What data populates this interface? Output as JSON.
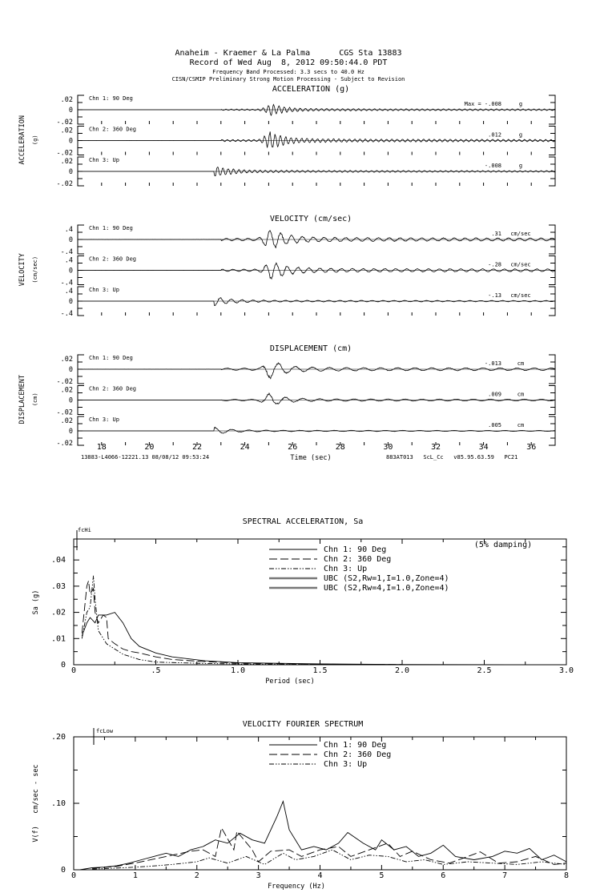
{
  "header": {
    "station": "Anaheim - Kraemer & La Palma      CGS Sta 13883",
    "record": "Record of Wed Aug  8, 2012 09:50:44.0 PDT",
    "band": "Frequency Band Processed: 3.3 secs to 40.0 Hz",
    "notice": "CISN/CSMIP Preliminary Strong Motion Processing - Subject to Revision"
  },
  "time_series": {
    "x_label": "Time (sec)",
    "x_ticks": [
      18,
      20,
      22,
      24,
      26,
      28,
      30,
      32,
      34,
      36
    ],
    "xlim": [
      17,
      37
    ],
    "footer_left": "13883-L4066-12221.13 08/08/12 09:53:24",
    "footer_right": "883AT013   ScL_Cc   v85.95.63.59   PC21",
    "groups": [
      {
        "title": "ACCELERATION (g)",
        "ylabel": "ACCELERATION",
        "yunit": "(g)",
        "ylim": 0.02,
        "tick_labels": [
          ".02",
          "0",
          "-.02"
        ],
        "channels": [
          {
            "label": "Chn 1: 90 Deg",
            "max_prefix": "Max =",
            "max": "-.008",
            "unit": "g",
            "onset": 23.0,
            "peak_time": 25.1,
            "peak": -0.008
          },
          {
            "label": "Chn 2: 360 Deg",
            "max": ".012",
            "unit": "g",
            "onset": 23.0,
            "peak_time": 25.05,
            "peak": 0.012
          },
          {
            "label": "Chn 3: Up",
            "max": "-.008",
            "unit": "g",
            "onset": 22.7,
            "peak_time": 22.75,
            "peak": -0.008
          }
        ]
      },
      {
        "title": "VELOCITY (cm/sec)",
        "ylabel": "VELOCITY",
        "yunit": "(cm/sec)",
        "ylim": 0.4,
        "tick_labels": [
          ".4",
          "0",
          "-.4"
        ],
        "channels": [
          {
            "label": "Chn 1: 90 Deg",
            "max": ".31",
            "unit": "cm/sec",
            "onset": 23.0,
            "peak_time": 25.05,
            "peak": 0.31
          },
          {
            "label": "Chn 2: 360 Deg",
            "max": "-.28",
            "unit": "cm/sec",
            "onset": 23.0,
            "peak_time": 25.1,
            "peak": -0.28
          },
          {
            "label": "Chn 3: Up",
            "max": "-.13",
            "unit": "cm/sec",
            "onset": 22.7,
            "peak_time": 22.75,
            "peak": -0.13
          }
        ]
      },
      {
        "title": "DISPLACEMENT (cm)",
        "ylabel": "DISPLACEMENT",
        "yunit": "(cm)",
        "ylim": 0.02,
        "tick_labels": [
          ".02",
          "0",
          "-.02"
        ],
        "channels": [
          {
            "label": "Chn 1: 90 Deg",
            "max": "-.013",
            "unit": "cm",
            "onset": 23.0,
            "peak_time": 25.05,
            "peak": -0.013
          },
          {
            "label": "Chn 2: 360 Deg",
            "max": ".009",
            "unit": "cm",
            "onset": 23.0,
            "peak_time": 25.0,
            "peak": 0.009
          },
          {
            "label": "Chn 3: Up",
            "max": ".005",
            "unit": "cm",
            "onset": 22.7,
            "peak_time": 22.75,
            "peak": 0.005
          }
        ]
      }
    ]
  },
  "chart_data": [
    {
      "type": "line",
      "title": "SPECTRAL ACCELERATION, Sa",
      "annotation": "(5% damping)",
      "marker_label": "fcHi",
      "xlabel": "Period (sec)",
      "ylabel": "Sa (g)",
      "xlim": [
        0,
        3
      ],
      "ylim": [
        0,
        0.048
      ],
      "x_ticks": [
        0,
        0.5,
        1.0,
        1.5,
        2.0,
        2.5,
        3.0
      ],
      "x_tick_labels": [
        "0",
        ".5",
        "1.0",
        "1.5",
        "2.0",
        "2.5",
        "3.0"
      ],
      "y_ticks": [
        0,
        0.01,
        0.02,
        0.03,
        0.04
      ],
      "y_tick_labels": [
        "0",
        ".01",
        ".02",
        ".03",
        ".04"
      ],
      "series": [
        {
          "name": "Chn 1: 90 Deg",
          "style": "solid",
          "points": [
            [
              0.05,
              0.011
            ],
            [
              0.08,
              0.016
            ],
            [
              0.1,
              0.018
            ],
            [
              0.13,
              0.016
            ],
            [
              0.15,
              0.019
            ],
            [
              0.2,
              0.019
            ],
            [
              0.25,
              0.02
            ],
            [
              0.3,
              0.016
            ],
            [
              0.35,
              0.01
            ],
            [
              0.4,
              0.007
            ],
            [
              0.5,
              0.0045
            ],
            [
              0.6,
              0.003
            ],
            [
              0.8,
              0.0015
            ],
            [
              1.0,
              0.0008
            ],
            [
              1.5,
              0.0003
            ],
            [
              2.0,
              0.0001
            ],
            [
              3.0,
              0
            ]
          ]
        },
        {
          "name": "Chn 2: 360 Deg",
          "style": "dashed",
          "points": [
            [
              0.05,
              0.012
            ],
            [
              0.08,
              0.03
            ],
            [
              0.09,
              0.032
            ],
            [
              0.1,
              0.027
            ],
            [
              0.12,
              0.029
            ],
            [
              0.13,
              0.02
            ],
            [
              0.15,
              0.016
            ],
            [
              0.18,
              0.019
            ],
            [
              0.2,
              0.018
            ],
            [
              0.21,
              0.01
            ],
            [
              0.25,
              0.008
            ],
            [
              0.3,
              0.006
            ],
            [
              0.35,
              0.005
            ],
            [
              0.4,
              0.0045
            ],
            [
              0.5,
              0.003
            ],
            [
              0.6,
              0.002
            ],
            [
              0.8,
              0.0012
            ],
            [
              1.0,
              0.0006
            ],
            [
              1.5,
              0.0002
            ],
            [
              2.0,
              0.0001
            ]
          ]
        },
        {
          "name": "Chn 3: Up",
          "style": "dashdot",
          "points": [
            [
              0.05,
              0.01
            ],
            [
              0.08,
              0.02
            ],
            [
              0.1,
              0.022
            ],
            [
              0.12,
              0.034
            ],
            [
              0.13,
              0.025
            ],
            [
              0.15,
              0.013
            ],
            [
              0.2,
              0.008
            ],
            [
              0.25,
              0.006
            ],
            [
              0.3,
              0.004
            ],
            [
              0.4,
              0.002
            ],
            [
              0.5,
              0.001
            ],
            [
              0.8,
              0.0005
            ],
            [
              1.0,
              0.0003
            ],
            [
              2.0,
              0
            ]
          ]
        },
        {
          "name": "UBC (S2,Rw=1,I=1.0,Zone=4)",
          "style": "thick-gray",
          "points": []
        },
        {
          "name": "UBC (S2,Rw=4,I=1.0,Zone=4)",
          "style": "thick-gray",
          "points": []
        }
      ],
      "legend": "top-center"
    },
    {
      "type": "line",
      "title": "VELOCITY FOURIER SPECTRUM",
      "marker_label": "fcLow",
      "xlabel": "Frequency (Hz)",
      "ylabel": "V(f)   cm/sec - sec",
      "xlim": [
        0,
        8
      ],
      "ylim": [
        0,
        0.2
      ],
      "x_ticks": [
        0,
        1,
        2,
        3,
        4,
        5,
        6,
        7,
        8
      ],
      "x_tick_labels": [
        "0",
        "1",
        "2",
        "3",
        "4",
        "5",
        "6",
        "7",
        "8"
      ],
      "y_ticks": [
        0,
        0.1,
        0.2
      ],
      "y_tick_labels": [
        "0",
        ".10",
        ".20"
      ],
      "series": [
        {
          "name": "Chn 1: 90 Deg",
          "style": "solid",
          "points": [
            [
              0.1,
              0
            ],
            [
              0.3,
              0.003
            ],
            [
              0.5,
              0.004
            ],
            [
              0.7,
              0.006
            ],
            [
              0.9,
              0.01
            ],
            [
              1.1,
              0.015
            ],
            [
              1.3,
              0.02
            ],
            [
              1.5,
              0.025
            ],
            [
              1.7,
              0.02
            ],
            [
              1.9,
              0.03
            ],
            [
              2.1,
              0.035
            ],
            [
              2.3,
              0.045
            ],
            [
              2.5,
              0.04
            ],
            [
              2.7,
              0.055
            ],
            [
              2.9,
              0.045
            ],
            [
              3.1,
              0.04
            ],
            [
              3.3,
              0.08
            ],
            [
              3.4,
              0.103
            ],
            [
              3.5,
              0.06
            ],
            [
              3.7,
              0.03
            ],
            [
              3.9,
              0.035
            ],
            [
              4.1,
              0.03
            ],
            [
              4.3,
              0.04
            ],
            [
              4.45,
              0.056
            ],
            [
              4.7,
              0.04
            ],
            [
              4.9,
              0.03
            ],
            [
              5.0,
              0.045
            ],
            [
              5.2,
              0.03
            ],
            [
              5.4,
              0.035
            ],
            [
              5.6,
              0.02
            ],
            [
              5.8,
              0.025
            ],
            [
              6.0,
              0.037
            ],
            [
              6.2,
              0.02
            ],
            [
              6.5,
              0.015
            ],
            [
              6.8,
              0.02
            ],
            [
              7.0,
              0.028
            ],
            [
              7.2,
              0.025
            ],
            [
              7.4,
              0.032
            ],
            [
              7.6,
              0.015
            ],
            [
              7.8,
              0.022
            ],
            [
              8.0,
              0.012
            ]
          ]
        },
        {
          "name": "Chn 2: 360 Deg",
          "style": "dashed",
          "points": [
            [
              0.3,
              0.002
            ],
            [
              0.7,
              0.005
            ],
            [
              1.1,
              0.012
            ],
            [
              1.5,
              0.02
            ],
            [
              1.9,
              0.028
            ],
            [
              2.1,
              0.03
            ],
            [
              2.3,
              0.02
            ],
            [
              2.4,
              0.063
            ],
            [
              2.6,
              0.03
            ],
            [
              2.65,
              0.058
            ],
            [
              2.9,
              0.03
            ],
            [
              3.0,
              0.012
            ],
            [
              3.2,
              0.028
            ],
            [
              3.5,
              0.03
            ],
            [
              3.7,
              0.02
            ],
            [
              4.0,
              0.03
            ],
            [
              4.3,
              0.035
            ],
            [
              4.5,
              0.02
            ],
            [
              4.8,
              0.03
            ],
            [
              5.1,
              0.04
            ],
            [
              5.3,
              0.02
            ],
            [
              5.5,
              0.028
            ],
            [
              5.8,
              0.015
            ],
            [
              6.1,
              0.01
            ],
            [
              6.4,
              0.02
            ],
            [
              6.6,
              0.027
            ],
            [
              6.9,
              0.01
            ],
            [
              7.2,
              0.012
            ],
            [
              7.5,
              0.02
            ],
            [
              7.8,
              0.008
            ],
            [
              8.0,
              0.01
            ]
          ]
        },
        {
          "name": "Chn 3: Up",
          "style": "dashdot",
          "points": [
            [
              0.3,
              0.001
            ],
            [
              0.8,
              0.003
            ],
            [
              1.2,
              0.005
            ],
            [
              1.6,
              0.008
            ],
            [
              2.0,
              0.012
            ],
            [
              2.2,
              0.018
            ],
            [
              2.5,
              0.01
            ],
            [
              2.8,
              0.02
            ],
            [
              3.1,
              0.008
            ],
            [
              3.4,
              0.025
            ],
            [
              3.6,
              0.015
            ],
            [
              3.9,
              0.02
            ],
            [
              4.2,
              0.03
            ],
            [
              4.5,
              0.015
            ],
            [
              4.8,
              0.022
            ],
            [
              5.1,
              0.02
            ],
            [
              5.4,
              0.012
            ],
            [
              5.7,
              0.015
            ],
            [
              6.0,
              0.008
            ],
            [
              6.4,
              0.012
            ],
            [
              6.8,
              0.01
            ],
            [
              7.2,
              0.008
            ],
            [
              7.6,
              0.012
            ],
            [
              8.0,
              0.008
            ]
          ]
        }
      ],
      "legend": "top-center"
    }
  ]
}
